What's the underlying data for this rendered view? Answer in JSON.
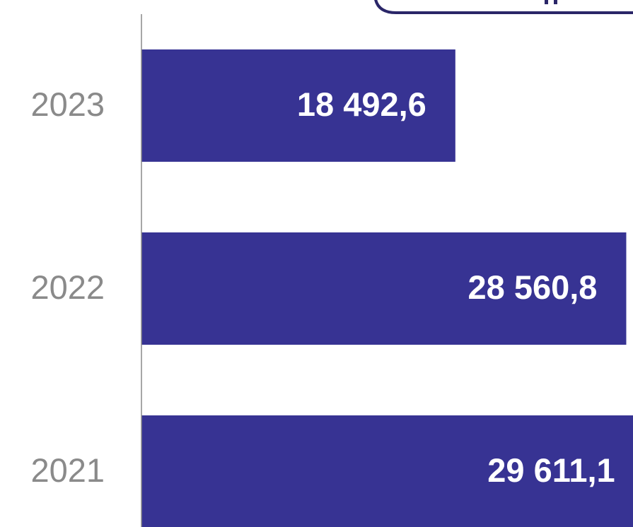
{
  "chart_data": {
    "type": "barh",
    "categories": [
      "2023",
      "2022",
      "2021"
    ],
    "values": [
      18492.6,
      28560.8,
      29611.1
    ],
    "value_labels": [
      "18 492,6",
      "28 560,8",
      "29 611,1"
    ],
    "color": "#373393",
    "xlim": [
      0,
      30000
    ]
  }
}
